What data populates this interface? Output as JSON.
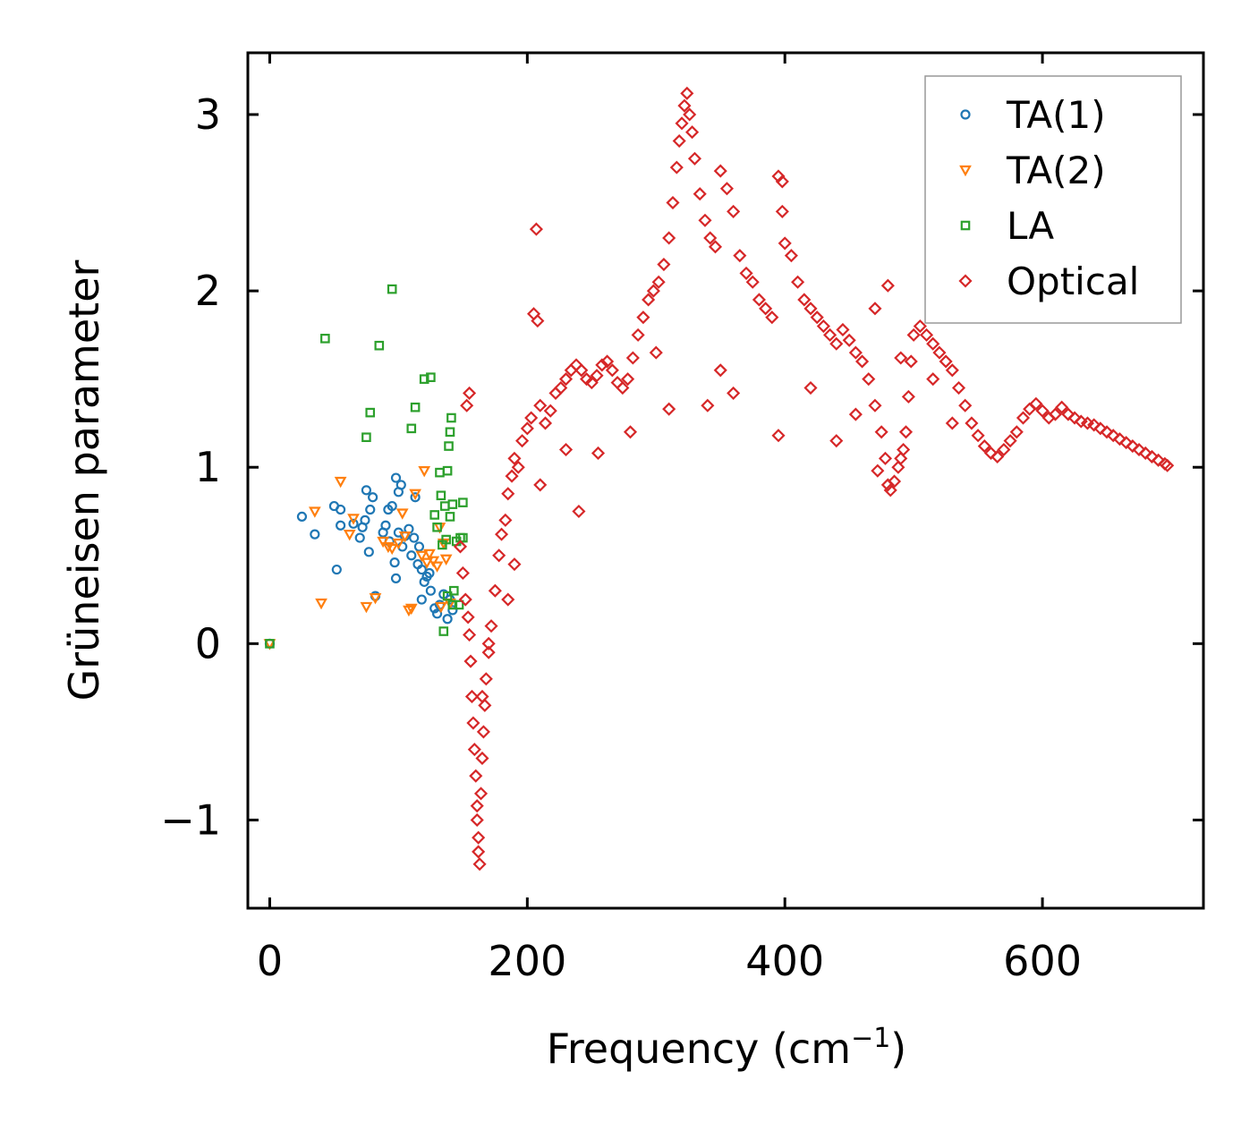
{
  "chart_data": {
    "type": "scatter",
    "title": "",
    "xlabel": "Frequency (cm",
    "xlabel_sup": "−1",
    "xlabel_suffix": ")",
    "ylabel": "Grüneisen parameter",
    "xlim": [
      -17,
      725
    ],
    "ylim": [
      -1.5,
      3.35
    ],
    "xticks": [
      0,
      200,
      400,
      600
    ],
    "xtick_labels": [
      "0",
      "200",
      "400",
      "600"
    ],
    "yticks": [
      -1,
      0,
      1,
      2,
      3
    ],
    "ytick_labels": [
      "−1",
      "0",
      "1",
      "2",
      "3"
    ],
    "grid": false,
    "legend_position": "top-right",
    "series": [
      {
        "name": "TA(1)",
        "marker": "circle",
        "color": "#1f77b4",
        "points": [
          [
            0,
            0
          ],
          [
            25,
            0.72
          ],
          [
            35,
            0.62
          ],
          [
            50,
            0.78
          ],
          [
            52,
            0.42
          ],
          [
            55,
            0.76
          ],
          [
            55,
            0.67
          ],
          [
            65,
            0.68
          ],
          [
            70,
            0.6
          ],
          [
            72,
            0.66
          ],
          [
            74,
            0.7
          ],
          [
            75,
            0.87
          ],
          [
            77,
            0.52
          ],
          [
            78,
            0.76
          ],
          [
            80,
            0.83
          ],
          [
            82,
            0.27
          ],
          [
            88,
            0.63
          ],
          [
            90,
            0.67
          ],
          [
            92,
            0.76
          ],
          [
            93,
            0.58
          ],
          [
            95,
            0.78
          ],
          [
            97,
            0.46
          ],
          [
            98,
            0.37
          ],
          [
            98,
            0.94
          ],
          [
            100,
            0.63
          ],
          [
            100,
            0.86
          ],
          [
            102,
            0.9
          ],
          [
            103,
            0.55
          ],
          [
            105,
            0.61
          ],
          [
            108,
            0.65
          ],
          [
            110,
            0.5
          ],
          [
            112,
            0.6
          ],
          [
            113,
            0.83
          ],
          [
            115,
            0.45
          ],
          [
            116,
            0.55
          ],
          [
            118,
            0.25
          ],
          [
            118,
            0.42
          ],
          [
            120,
            0.35
          ],
          [
            122,
            0.38
          ],
          [
            124,
            0.4
          ],
          [
            125,
            0.3
          ],
          [
            128,
            0.2
          ],
          [
            130,
            0.17
          ],
          [
            132,
            0.22
          ],
          [
            135,
            0.28
          ],
          [
            138,
            0.14
          ],
          [
            140,
            0.25
          ],
          [
            142,
            0.19
          ]
        ]
      },
      {
        "name": "TA(2)",
        "marker": "triangle-down",
        "color": "#ff7f0e",
        "points": [
          [
            0,
            0
          ],
          [
            35,
            0.75
          ],
          [
            40,
            0.23
          ],
          [
            55,
            0.92
          ],
          [
            62,
            0.62
          ],
          [
            65,
            0.71
          ],
          [
            75,
            0.21
          ],
          [
            82,
            0.26
          ],
          [
            88,
            0.58
          ],
          [
            92,
            0.55
          ],
          [
            95,
            0.54
          ],
          [
            100,
            0.57
          ],
          [
            103,
            0.74
          ],
          [
            105,
            0.61
          ],
          [
            108,
            0.19
          ],
          [
            110,
            0.2
          ],
          [
            113,
            0.85
          ],
          [
            118,
            0.5
          ],
          [
            120,
            0.98
          ],
          [
            122,
            0.46
          ],
          [
            124,
            0.51
          ],
          [
            127,
            0.47
          ],
          [
            130,
            0.44
          ],
          [
            132,
            0.66
          ],
          [
            133,
            0.21
          ],
          [
            135,
            0.57
          ],
          [
            137,
            0.48
          ],
          [
            140,
            0.23
          ]
        ]
      },
      {
        "name": "LA",
        "marker": "square",
        "color": "#2ca02c",
        "points": [
          [
            0,
            0
          ],
          [
            43,
            1.73
          ],
          [
            75,
            1.17
          ],
          [
            78,
            1.31
          ],
          [
            85,
            1.69
          ],
          [
            95,
            2.01
          ],
          [
            110,
            1.22
          ],
          [
            113,
            1.34
          ],
          [
            120,
            1.5
          ],
          [
            125,
            1.51
          ],
          [
            128,
            0.73
          ],
          [
            130,
            0.66
          ],
          [
            132,
            0.97
          ],
          [
            133,
            0.84
          ],
          [
            134,
            0.56
          ],
          [
            135,
            0.07
          ],
          [
            136,
            0.78
          ],
          [
            137,
            0.59
          ],
          [
            138,
            0.98
          ],
          [
            138,
            0.27
          ],
          [
            139,
            1.12
          ],
          [
            140,
            1.2
          ],
          [
            140,
            0.72
          ],
          [
            141,
            1.28
          ],
          [
            142,
            0.79
          ],
          [
            142,
            0.22
          ],
          [
            143,
            0.3
          ],
          [
            145,
            0.58
          ],
          [
            147,
            0.22
          ],
          [
            148,
            0.6
          ],
          [
            150,
            0.8
          ],
          [
            150,
            0.6
          ]
        ]
      },
      {
        "name": "Optical",
        "marker": "diamond",
        "color": "#d62728",
        "points": [
          [
            148,
            0.55
          ],
          [
            150,
            0.4
          ],
          [
            152,
            0.25
          ],
          [
            153,
            1.35
          ],
          [
            154,
            0.15
          ],
          [
            155,
            1.42
          ],
          [
            155,
            0.05
          ],
          [
            156,
            -0.1
          ],
          [
            157,
            -0.3
          ],
          [
            158,
            -0.45
          ],
          [
            159,
            -0.6
          ],
          [
            160,
            -0.75
          ],
          [
            161,
            -0.92
          ],
          [
            161,
            -1.0
          ],
          [
            162,
            -1.1
          ],
          [
            162,
            -1.18
          ],
          [
            163,
            -1.25
          ],
          [
            164,
            -0.85
          ],
          [
            165,
            -0.65
          ],
          [
            166,
            -0.5
          ],
          [
            167,
            -0.35
          ],
          [
            168,
            -0.2
          ],
          [
            170,
            -0.05
          ],
          [
            172,
            0.1
          ],
          [
            175,
            0.3
          ],
          [
            178,
            0.5
          ],
          [
            180,
            0.62
          ],
          [
            183,
            0.7
          ],
          [
            185,
            0.85
          ],
          [
            188,
            0.95
          ],
          [
            190,
            1.05
          ],
          [
            193,
            1.0
          ],
          [
            196,
            1.15
          ],
          [
            200,
            1.22
          ],
          [
            203,
            1.28
          ],
          [
            205,
            1.87
          ],
          [
            207,
            2.35
          ],
          [
            208,
            1.83
          ],
          [
            210,
            1.35
          ],
          [
            214,
            1.25
          ],
          [
            218,
            1.32
          ],
          [
            222,
            1.42
          ],
          [
            226,
            1.45
          ],
          [
            230,
            1.5
          ],
          [
            234,
            1.55
          ],
          [
            238,
            1.58
          ],
          [
            242,
            1.55
          ],
          [
            246,
            1.5
          ],
          [
            250,
            1.48
          ],
          [
            254,
            1.52
          ],
          [
            258,
            1.58
          ],
          [
            262,
            1.6
          ],
          [
            266,
            1.55
          ],
          [
            270,
            1.48
          ],
          [
            274,
            1.45
          ],
          [
            278,
            1.5
          ],
          [
            282,
            1.62
          ],
          [
            286,
            1.75
          ],
          [
            290,
            1.85
          ],
          [
            294,
            1.95
          ],
          [
            298,
            2.0
          ],
          [
            302,
            2.05
          ],
          [
            306,
            2.15
          ],
          [
            310,
            2.3
          ],
          [
            313,
            2.5
          ],
          [
            316,
            2.7
          ],
          [
            318,
            2.85
          ],
          [
            320,
            2.95
          ],
          [
            322,
            3.05
          ],
          [
            324,
            3.12
          ],
          [
            326,
            3.0
          ],
          [
            328,
            2.9
          ],
          [
            330,
            2.75
          ],
          [
            334,
            2.55
          ],
          [
            338,
            2.4
          ],
          [
            342,
            2.3
          ],
          [
            346,
            2.25
          ],
          [
            350,
            2.68
          ],
          [
            355,
            2.58
          ],
          [
            360,
            2.45
          ],
          [
            365,
            2.2
          ],
          [
            370,
            2.1
          ],
          [
            375,
            2.05
          ],
          [
            380,
            1.95
          ],
          [
            385,
            1.9
          ],
          [
            390,
            1.85
          ],
          [
            395,
            2.65
          ],
          [
            398,
            2.62
          ],
          [
            398,
            2.45
          ],
          [
            400,
            2.27
          ],
          [
            405,
            2.2
          ],
          [
            410,
            2.05
          ],
          [
            415,
            1.95
          ],
          [
            420,
            1.9
          ],
          [
            425,
            1.85
          ],
          [
            430,
            1.8
          ],
          [
            435,
            1.75
          ],
          [
            440,
            1.7
          ],
          [
            445,
            1.78
          ],
          [
            450,
            1.72
          ],
          [
            455,
            1.65
          ],
          [
            460,
            1.6
          ],
          [
            465,
            1.5
          ],
          [
            470,
            1.35
          ],
          [
            475,
            1.2
          ],
          [
            478,
            1.05
          ],
          [
            480,
            0.9
          ],
          [
            482,
            0.87
          ],
          [
            485,
            0.92
          ],
          [
            488,
            1.0
          ],
          [
            490,
            1.05
          ],
          [
            492,
            1.1
          ],
          [
            494,
            1.2
          ],
          [
            496,
            1.4
          ],
          [
            498,
            1.6
          ],
          [
            500,
            1.75
          ],
          [
            505,
            1.8
          ],
          [
            510,
            1.75
          ],
          [
            515,
            1.7
          ],
          [
            520,
            1.65
          ],
          [
            525,
            1.6
          ],
          [
            530,
            1.55
          ],
          [
            535,
            1.45
          ],
          [
            540,
            1.35
          ],
          [
            545,
            1.25
          ],
          [
            550,
            1.18
          ],
          [
            555,
            1.12
          ],
          [
            560,
            1.08
          ],
          [
            565,
            1.06
          ],
          [
            570,
            1.1
          ],
          [
            575,
            1.15
          ],
          [
            580,
            1.2
          ],
          [
            585,
            1.28
          ],
          [
            590,
            1.33
          ],
          [
            595,
            1.36
          ],
          [
            600,
            1.32
          ],
          [
            605,
            1.28
          ],
          [
            610,
            1.3
          ],
          [
            615,
            1.34
          ],
          [
            620,
            1.3
          ],
          [
            625,
            1.28
          ],
          [
            630,
            1.26
          ],
          [
            635,
            1.25
          ],
          [
            640,
            1.24
          ],
          [
            645,
            1.22
          ],
          [
            650,
            1.2
          ],
          [
            655,
            1.18
          ],
          [
            660,
            1.16
          ],
          [
            665,
            1.14
          ],
          [
            670,
            1.12
          ],
          [
            675,
            1.1
          ],
          [
            680,
            1.08
          ],
          [
            685,
            1.06
          ],
          [
            690,
            1.04
          ],
          [
            695,
            1.02
          ],
          [
            697,
            1.01
          ],
          [
            480,
            2.03
          ],
          [
            472,
            0.98
          ],
          [
            395,
            1.18
          ],
          [
            360,
            1.42
          ],
          [
            340,
            1.35
          ],
          [
            310,
            1.33
          ],
          [
            255,
            1.08
          ],
          [
            240,
            0.75
          ],
          [
            190,
            0.45
          ],
          [
            185,
            0.25
          ],
          [
            170,
            0.0
          ],
          [
            165,
            -0.3
          ],
          [
            210,
            0.9
          ],
          [
            230,
            1.1
          ],
          [
            280,
            1.2
          ],
          [
            300,
            1.65
          ],
          [
            350,
            1.55
          ],
          [
            420,
            1.45
          ],
          [
            440,
            1.15
          ],
          [
            455,
            1.3
          ],
          [
            470,
            1.9
          ],
          [
            490,
            1.62
          ],
          [
            515,
            1.5
          ],
          [
            530,
            1.25
          ]
        ]
      }
    ]
  }
}
